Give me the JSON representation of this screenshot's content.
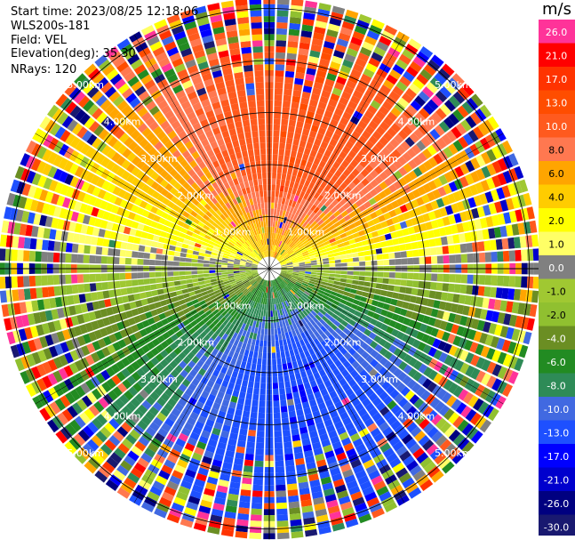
{
  "info": {
    "start_time": "Start time: 2023/08/25 12:18:06",
    "instrument": "WLS200s-181",
    "field": "Field: VEL",
    "elevation": "Elevation(deg): 35.30",
    "nrays": "NRays: 120"
  },
  "colorbar": {
    "unit": "m/s",
    "ticks": [
      "26.0",
      "21.0",
      "17.0",
      "13.0",
      "10.0",
      "8.0",
      "6.0",
      "4.0",
      "2.0",
      "1.0",
      "0.0",
      "-1.0",
      "-2.0",
      "-4.0",
      "-6.0",
      "-8.0",
      "-10.0",
      "-13.0",
      "-17.0",
      "-21.0",
      "-26.0",
      "-30.0"
    ],
    "colors": [
      "#ff3399",
      "#ff0000",
      "#ff3300",
      "#ff4d00",
      "#ff5a1e",
      "#ff7850",
      "#ffa500",
      "#ffcc00",
      "#ffff00",
      "#ffff66",
      "#808080",
      "#a0c832",
      "#90c030",
      "#6b8e23",
      "#228b22",
      "#2e8b57",
      "#4169e1",
      "#1e50ff",
      "#0000ff",
      "#0000cd",
      "#000080",
      "#191970"
    ]
  },
  "chart_data": {
    "type": "polar_ppi",
    "field": "VEL",
    "units": "m/s",
    "nrays": 120,
    "elevation_deg": 35.3,
    "range_rings_km": [
      1.0,
      2.0,
      3.0,
      4.0,
      5.0
    ],
    "ring_labels": [
      "1.00km",
      "2.00km",
      "3.00km",
      "4.00km",
      "5.00km"
    ],
    "max_range_km": 5.2,
    "velocity_pattern": "north ≈ +10 to +21 m/s (receding), south ≈ -6 to -13 m/s (approaching), near zero along east-west axis, noisy beyond ~3.5 km"
  }
}
